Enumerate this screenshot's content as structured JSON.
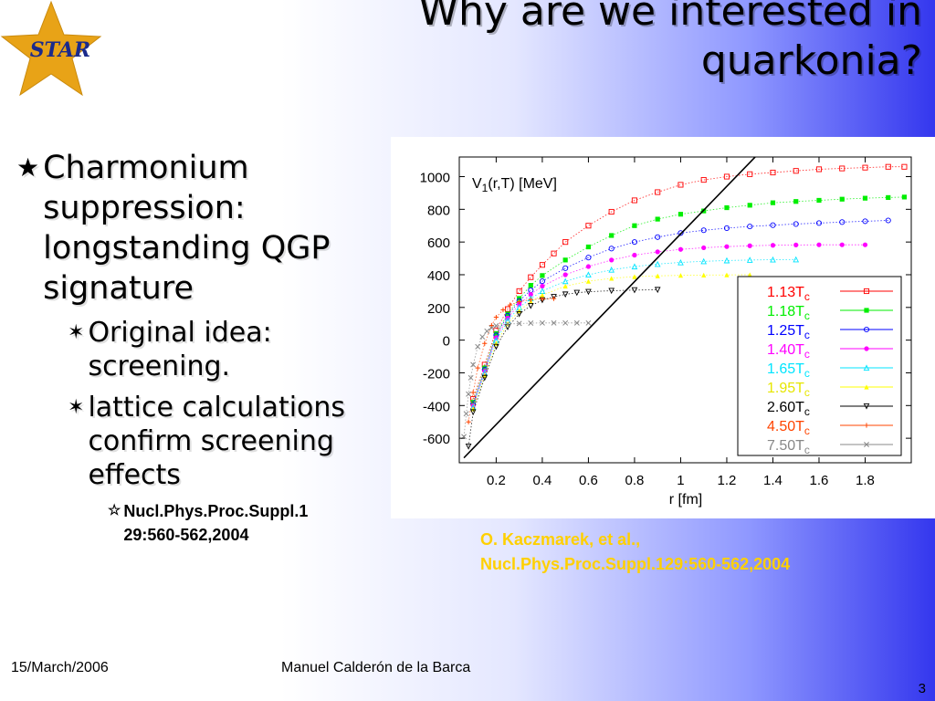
{
  "slide": {
    "title_line1": "Why are we interested in",
    "title_line2": "quarkonia?",
    "logo_text": "STAR",
    "bullets": {
      "level1": "Charmonium suppression: longstanding QGP signature",
      "level2a": "Original idea: screening.",
      "level2b": "lattice calculations confirm screening effects",
      "level3_line1": "Nucl.Phys.Proc.Suppl.1",
      "level3_line2": "29:560-562,2004"
    },
    "citation_line1": "O. Kaczmarek, et al.,",
    "citation_line2": "Nucl.Phys.Proc.Suppl.129:560-562,2004",
    "footer_date": "15/March/2006",
    "footer_author": "Manuel Calderón de la Barca",
    "page_number": "3"
  },
  "chart_data": {
    "type": "scatter",
    "title_main": "V",
    "title_sub": "1",
    "title_rest": "(r,T) [MeV]",
    "xlabel": "r [fm]",
    "ylabel": "",
    "xlim": [
      0.04,
      2.0
    ],
    "ylim": [
      -750,
      1120
    ],
    "x_ticks": [
      0.2,
      0.4,
      0.6,
      0.8,
      1,
      1.2,
      1.4,
      1.6,
      1.8
    ],
    "x_tick_labels": [
      "0.2",
      "0.4",
      "0.6",
      "0.8",
      "1",
      "1.2",
      "1.4",
      "1.6",
      "1.8"
    ],
    "y_ticks": [
      -600,
      -400,
      -200,
      0,
      200,
      400,
      600,
      800,
      1000
    ],
    "y_tick_labels": [
      "-600",
      "-400",
      "-200",
      "0",
      "200",
      "400",
      "600",
      "800",
      "1000"
    ],
    "grid": false,
    "legend_position": "lower-right",
    "zero_temperature_line": {
      "x": [
        0.06,
        1.33
      ],
      "y": [
        -720,
        1130
      ]
    },
    "series": [
      {
        "label": "1.13T",
        "subscript": "c",
        "color": "#ff0000",
        "marker": "square-open",
        "x": [
          0.1,
          0.15,
          0.2,
          0.25,
          0.3,
          0.35,
          0.4,
          0.45,
          0.5,
          0.6,
          0.7,
          0.8,
          0.9,
          1.0,
          1.1,
          1.2,
          1.3,
          1.4,
          1.5,
          1.6,
          1.7,
          1.8,
          1.9,
          1.97
        ],
        "y": [
          -360,
          -150,
          60,
          190,
          300,
          385,
          460,
          530,
          600,
          700,
          785,
          855,
          905,
          950,
          980,
          1000,
          1015,
          1025,
          1035,
          1045,
          1050,
          1055,
          1060,
          1060
        ]
      },
      {
        "label": "1.18T",
        "subscript": "c",
        "color": "#00ee00",
        "marker": "square-filled",
        "x": [
          0.1,
          0.15,
          0.2,
          0.25,
          0.3,
          0.35,
          0.4,
          0.5,
          0.6,
          0.7,
          0.8,
          0.9,
          1.0,
          1.1,
          1.2,
          1.3,
          1.4,
          1.5,
          1.6,
          1.7,
          1.8,
          1.9,
          1.97
        ],
        "y": [
          -380,
          -170,
          40,
          160,
          255,
          335,
          395,
          490,
          570,
          640,
          700,
          740,
          770,
          790,
          810,
          825,
          840,
          848,
          855,
          862,
          868,
          872,
          875
        ]
      },
      {
        "label": "1.25T",
        "subscript": "c",
        "color": "#0000ff",
        "marker": "circle-open",
        "x": [
          0.1,
          0.15,
          0.2,
          0.25,
          0.3,
          0.35,
          0.4,
          0.5,
          0.6,
          0.7,
          0.8,
          0.9,
          1.0,
          1.1,
          1.2,
          1.3,
          1.4,
          1.5,
          1.6,
          1.7,
          1.8,
          1.9
        ],
        "y": [
          -390,
          -180,
          30,
          150,
          240,
          305,
          360,
          440,
          505,
          560,
          600,
          630,
          655,
          672,
          685,
          695,
          703,
          710,
          716,
          722,
          727,
          732
        ]
      },
      {
        "label": "1.40T",
        "subscript": "c",
        "color": "#ff00ff",
        "marker": "circle-filled",
        "x": [
          0.1,
          0.15,
          0.2,
          0.25,
          0.3,
          0.35,
          0.4,
          0.5,
          0.6,
          0.7,
          0.8,
          0.9,
          1.0,
          1.1,
          1.2,
          1.3,
          1.4,
          1.5,
          1.6,
          1.7,
          1.8
        ],
        "y": [
          -400,
          -190,
          15,
          135,
          220,
          280,
          330,
          400,
          450,
          490,
          520,
          540,
          555,
          565,
          572,
          577,
          580,
          582,
          583,
          583,
          583
        ]
      },
      {
        "label": "1.65T",
        "subscript": "c",
        "color": "#00e5ff",
        "marker": "triangle-up-open",
        "x": [
          0.1,
          0.15,
          0.2,
          0.25,
          0.3,
          0.35,
          0.4,
          0.5,
          0.6,
          0.7,
          0.8,
          0.9,
          1.0,
          1.1,
          1.2,
          1.3,
          1.4,
          1.5
        ],
        "y": [
          -410,
          -200,
          0,
          120,
          200,
          255,
          300,
          360,
          400,
          430,
          450,
          465,
          475,
          482,
          487,
          490,
          492,
          493
        ]
      },
      {
        "label": "1.95T",
        "subscript": "c",
        "color": "#ffff00",
        "marker": "triangle-up-filled",
        "x": [
          0.1,
          0.15,
          0.2,
          0.25,
          0.3,
          0.35,
          0.4,
          0.5,
          0.6,
          0.7,
          0.8,
          0.9,
          1.0,
          1.1,
          1.2,
          1.3
        ],
        "y": [
          -420,
          -215,
          -20,
          100,
          180,
          235,
          275,
          330,
          360,
          378,
          388,
          393,
          396,
          398,
          399,
          400
        ]
      },
      {
        "label": "2.60T",
        "subscript": "c",
        "color": "#000000",
        "marker": "triangle-down-open",
        "x": [
          0.08,
          0.1,
          0.15,
          0.2,
          0.25,
          0.3,
          0.35,
          0.4,
          0.45,
          0.5,
          0.55,
          0.6,
          0.7,
          0.8,
          0.9
        ],
        "y": [
          -650,
          -440,
          -230,
          -40,
          80,
          160,
          210,
          245,
          265,
          280,
          290,
          296,
          302,
          306,
          308
        ]
      },
      {
        "label": "4.50T",
        "subscript": "c",
        "color": "#ff4400",
        "marker": "plus",
        "x": [
          0.08,
          0.1,
          0.12,
          0.15,
          0.18,
          0.2,
          0.23,
          0.26,
          0.3,
          0.35,
          0.4,
          0.45
        ],
        "y": [
          -500,
          -320,
          -170,
          -20,
          90,
          140,
          185,
          215,
          235,
          248,
          252,
          254
        ]
      },
      {
        "label": "7.50T",
        "subscript": "c",
        "color": "#888888",
        "marker": "cross",
        "x": [
          0.06,
          0.07,
          0.08,
          0.09,
          0.1,
          0.12,
          0.14,
          0.16,
          0.18,
          0.2,
          0.25,
          0.3,
          0.35,
          0.4,
          0.45,
          0.5,
          0.55,
          0.6
        ],
        "y": [
          -590,
          -450,
          -330,
          -230,
          -150,
          -40,
          20,
          55,
          75,
          88,
          98,
          102,
          104,
          105,
          105,
          105,
          105,
          105
        ]
      }
    ]
  },
  "colors": {
    "title_text": "#000000",
    "citation_text": "#ffd000",
    "star_logo_fill": "#e8a317",
    "star_logo_text": "#1a2a8c",
    "gradient_right": "#3437ee"
  }
}
